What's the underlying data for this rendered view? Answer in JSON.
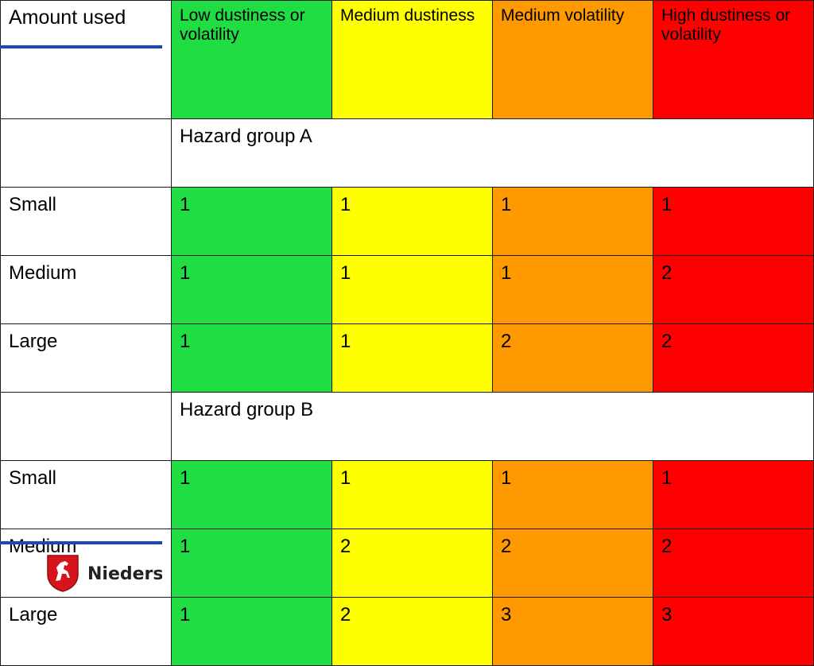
{
  "colors": {
    "low": "#20dd44",
    "medium_dustiness": "#ffff00",
    "medium_volatility": "#ff9900",
    "high": "#ff0000",
    "accent_rule": "#1c47b8"
  },
  "table": {
    "corner_label": "Amount used",
    "headers": [
      "Low dustiness or volatility",
      "Medium dustiness",
      "Medium volatility",
      "High dustiness or volatility"
    ],
    "groups": [
      {
        "label": "Hazard group A",
        "rows": [
          {
            "label": "Small",
            "values": [
              "1",
              "1",
              "1",
              "1"
            ]
          },
          {
            "label": "Medium",
            "values": [
              "1",
              "1",
              "1",
              "2"
            ]
          },
          {
            "label": "Large",
            "values": [
              "1",
              "1",
              "2",
              "2"
            ]
          }
        ]
      },
      {
        "label": "Hazard group B",
        "rows": [
          {
            "label": "Small",
            "values": [
              "1",
              "1",
              "1",
              "1"
            ]
          },
          {
            "label": "Medium",
            "values": [
              "1",
              "2",
              "2",
              "2"
            ]
          },
          {
            "label": "Large",
            "values": [
              "1",
              "2",
              "3",
              "3"
            ]
          }
        ]
      }
    ]
  },
  "logo": {
    "icon": "coat-of-arms-horse-icon",
    "text": "Niedersachsen"
  }
}
